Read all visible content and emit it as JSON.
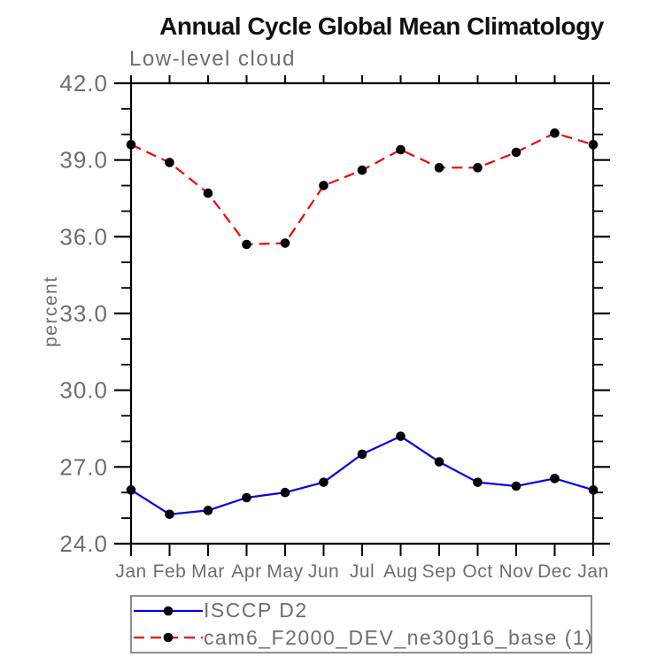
{
  "chart_data": {
    "type": "line",
    "title": "Annual Cycle Global Mean Climatology",
    "subtitle": "Low-level cloud",
    "ylabel": "percent",
    "categories": [
      "Jan",
      "Feb",
      "Mar",
      "Apr",
      "May",
      "Jun",
      "Jul",
      "Aug",
      "Sep",
      "Oct",
      "Nov",
      "Dec",
      "Jan"
    ],
    "y_axis": {
      "min": 24.0,
      "max": 42.0,
      "major_step": 3.0,
      "minor_step": 1.0,
      "major_tick_labels": [
        "24.0",
        "27.0",
        "30.0",
        "33.0",
        "36.0",
        "39.0",
        "42.0"
      ]
    },
    "grid": "off",
    "legend_position": "bottom-left-box",
    "series": [
      {
        "name": "ISCCP D2",
        "color": "#0000ee",
        "style": "solid",
        "marker": "filled-circle",
        "marker_color": "#000000",
        "values": [
          26.1,
          25.15,
          25.3,
          25.8,
          26.0,
          26.4,
          27.5,
          28.2,
          27.2,
          26.4,
          26.25,
          26.55,
          26.1
        ]
      },
      {
        "name": "cam6_F2000_DEV_ne30g16_base (1)",
        "color": "#f40000",
        "style": "dashed",
        "marker": "filled-circle",
        "marker_color": "#000000",
        "values": [
          39.6,
          38.9,
          37.7,
          35.7,
          35.75,
          38.0,
          38.6,
          39.4,
          38.7,
          38.7,
          39.3,
          40.05,
          39.6
        ]
      }
    ]
  },
  "styles": {
    "axis_color": "#000000",
    "text_color": "#6e6e6e",
    "title_color": "#111111",
    "background": "#ffffff"
  }
}
